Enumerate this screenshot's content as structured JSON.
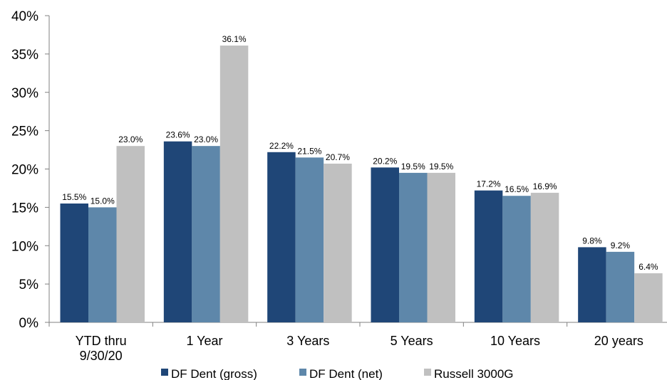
{
  "chart_data": {
    "type": "bar",
    "categories": [
      [
        "YTD thru",
        "9/30/20"
      ],
      [
        "1 Year"
      ],
      [
        "3 Years"
      ],
      [
        "5 Years"
      ],
      [
        "10 Years"
      ],
      [
        "20 years"
      ]
    ],
    "series": [
      {
        "name": "DF Dent (gross)",
        "color": "#1f4677",
        "values": [
          15.5,
          23.6,
          22.2,
          20.2,
          17.2,
          9.8
        ],
        "labels": [
          "15.5%",
          "23.6%",
          "22.2%",
          "20.2%",
          "17.2%",
          "9.8%"
        ]
      },
      {
        "name": "DF Dent (net)",
        "color": "#5e87aa",
        "values": [
          15.0,
          23.0,
          21.5,
          19.5,
          16.5,
          9.2
        ],
        "labels": [
          "15.0%",
          "23.0%",
          "21.5%",
          "19.5%",
          "16.5%",
          "9.2%"
        ]
      },
      {
        "name": "Russell 3000G",
        "color": "#c0c0c0",
        "values": [
          23.0,
          36.1,
          20.7,
          19.5,
          16.9,
          6.4
        ],
        "labels": [
          "23.0%",
          "36.1%",
          "20.7%",
          "19.5%",
          "16.9%",
          "6.4%"
        ]
      }
    ],
    "ylim": [
      0,
      40
    ],
    "yticks": [
      "0%",
      "5%",
      "10%",
      "15%",
      "20%",
      "25%",
      "30%",
      "35%",
      "40%"
    ],
    "grid": false,
    "legend_position": "bottom"
  }
}
